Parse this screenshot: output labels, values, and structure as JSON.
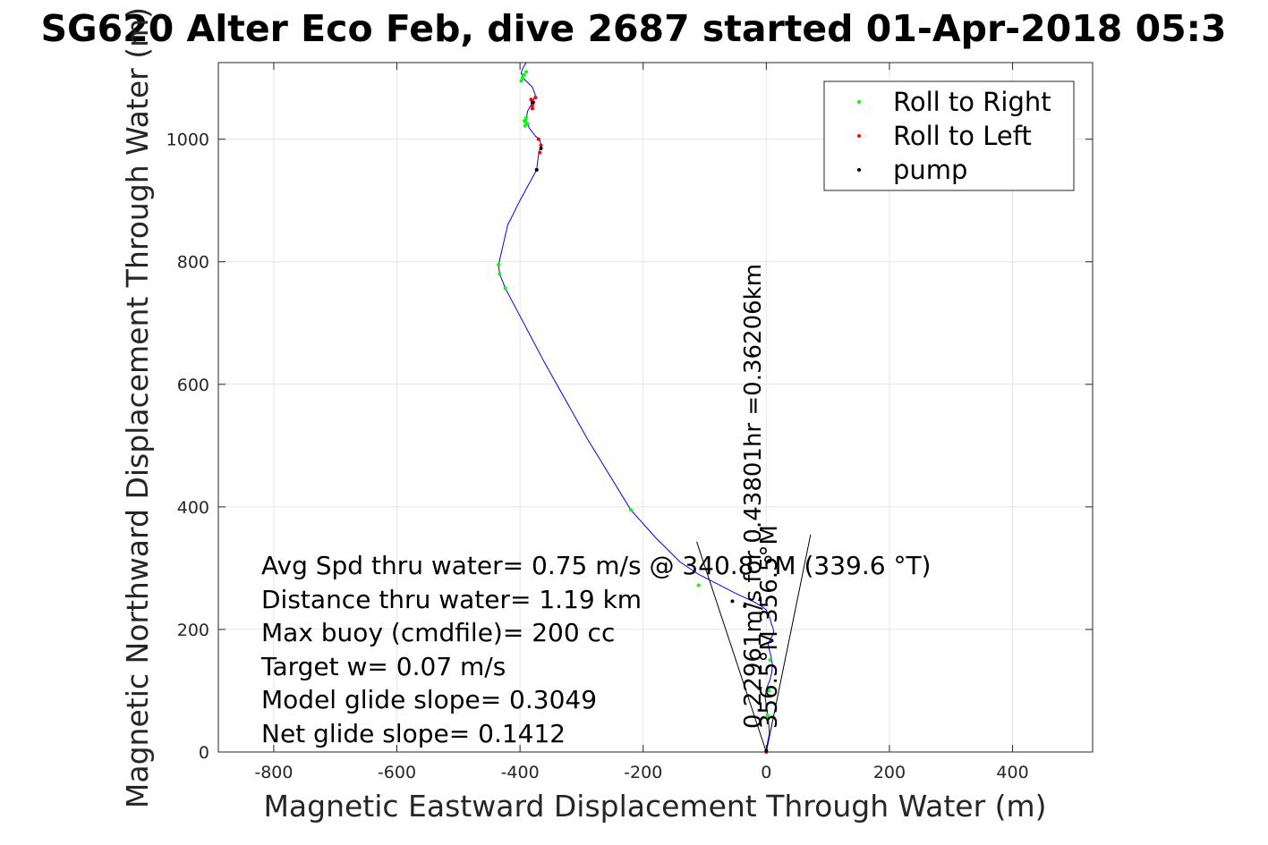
{
  "chart_data": {
    "type": "line",
    "title": "SG620 Alter Eco Feb, dive 2687 started 01-Apr-2018 05:3",
    "xlabel": "Magnetic Eastward Displacement Through Water (m)",
    "ylabel": "Magnetic Northward Displacement Through Water (m)",
    "xlim": [
      -890,
      530
    ],
    "ylim": [
      0,
      1125
    ],
    "xticks": [
      -800,
      -600,
      -400,
      -200,
      0,
      200,
      400
    ],
    "yticks": [
      0,
      200,
      400,
      600,
      800,
      1000
    ],
    "xtick_labels": [
      "-800",
      "-600",
      "-400",
      "-200",
      "0",
      "200",
      "400"
    ],
    "ytick_labels": [
      "0",
      "200",
      "400",
      "600",
      "800",
      "1000"
    ],
    "grid": true,
    "legend_position": "top-right",
    "legend": [
      {
        "label": "Roll to Right",
        "color": "#00ff00"
      },
      {
        "label": "Roll to Left",
        "color": "#ff0000"
      },
      {
        "label": "pump",
        "color": "#000000"
      }
    ],
    "track": {
      "color": "#0000ff",
      "x": [
        0,
        2,
        5,
        4,
        2,
        0,
        -2,
        1,
        6,
        9,
        10,
        8,
        5,
        3,
        6,
        10,
        12,
        11,
        8,
        6,
        4,
        0,
        -8,
        -20,
        -35,
        -52,
        -75,
        -110,
        -140,
        -180,
        -220,
        -290,
        -360,
        -424,
        -433,
        -435,
        -420,
        -400,
        -373,
        -370,
        -366,
        -368,
        -375,
        -385,
        -390,
        -388,
        -380,
        -375,
        -380,
        -390,
        -395,
        -398,
        -396,
        -390
      ],
      "y": [
        0,
        15,
        30,
        45,
        60,
        75,
        90,
        105,
        118,
        130,
        142,
        155,
        166,
        175,
        183,
        190,
        196,
        202,
        210,
        218,
        224,
        232,
        238,
        245,
        252,
        260,
        272,
        290,
        310,
        350,
        395,
        510,
        635,
        757,
        780,
        795,
        860,
        900,
        950,
        975,
        990,
        1000,
        1005,
        1018,
        1030,
        1045,
        1060,
        1072,
        1085,
        1095,
        1100,
        1108,
        1115,
        1125
      ]
    },
    "roll_right": {
      "x": [
        -424,
        -433,
        -435,
        -220,
        -110,
        -392,
        -388,
        -393,
        -390,
        -391,
        -398,
        -396,
        -394,
        -390,
        2,
        4,
        6
      ],
      "y": [
        757,
        780,
        795,
        395,
        272,
        1022,
        1025,
        1030,
        1035,
        1028,
        1095,
        1100,
        1105,
        1110,
        60,
        100,
        150
      ]
    },
    "roll_left": {
      "x": [
        -373,
        -368,
        -366,
        -370,
        -380,
        -378,
        -382,
        -375,
        -380,
        0
      ],
      "y": [
        950,
        978,
        990,
        1000,
        1050,
        1060,
        1065,
        1068,
        1055,
        0
      ]
    },
    "pump": {
      "x": [
        -55,
        -35,
        -373,
        -366,
        -380,
        0
      ],
      "y": [
        246,
        238,
        950,
        985,
        1060,
        2
      ]
    },
    "direction_wedge": {
      "lines": [
        {
          "x": [
            0,
            -113
          ],
          "y": [
            0,
            343
          ]
        },
        {
          "x": [
            0,
            72
          ],
          "y": [
            0,
            355
          ]
        }
      ]
    },
    "annotations": [
      "Avg Spd thru water=  0.75 m/s @ 340.8 °M (339.6 °T)",
      "Distance thru water=  1.19 km",
      "Max buoy (cmdfile)= 200 cc",
      "Target w= 0.07 m/s",
      "Model glide slope= 0.3049",
      "Net glide slope= 0.1412"
    ],
    "rotated_annotations": [
      "0.22961m/s for 0.43801hr =0.36206km",
      "356.5°M 356.5°M"
    ]
  }
}
